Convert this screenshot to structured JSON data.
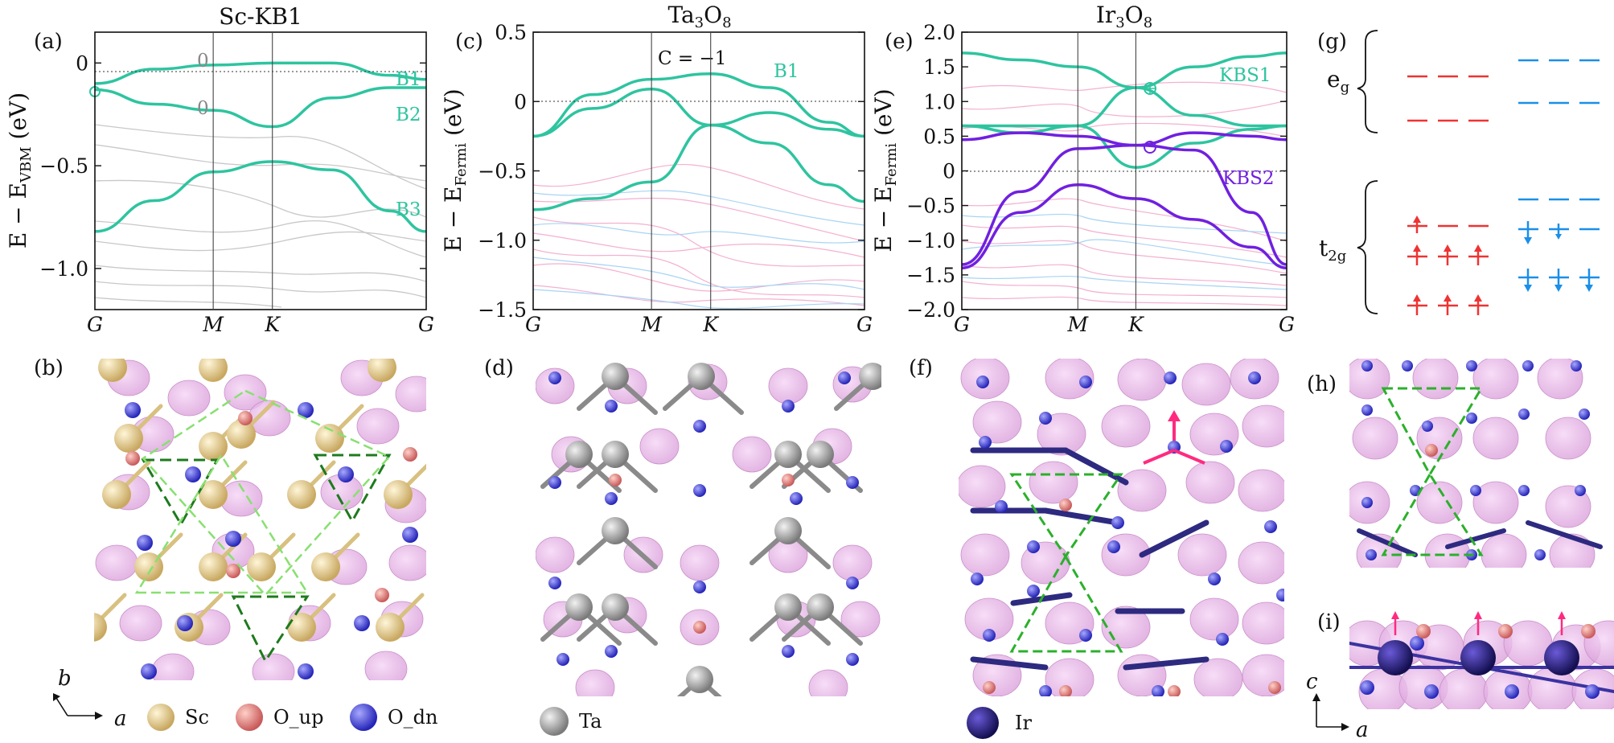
{
  "figure": {
    "panels": {
      "a": "(a)",
      "b": "(b)",
      "c": "(c)",
      "d": "(d)",
      "e": "(e)",
      "f": "(f)",
      "g": "(g)",
      "h": "(h)",
      "i": "(i)"
    },
    "titles": {
      "a": "Sc-KB1",
      "c": "Ta3O8",
      "e": "Ir3O8"
    },
    "ylabels": {
      "a": "E − E_VBM (eV)",
      "c": "E − E_Fermi (eV)",
      "e": "E − E_Fermi (eV)"
    },
    "kpath": [
      "G",
      "M",
      "K",
      "G"
    ],
    "band_labels": {
      "a": [
        "B1",
        "B2",
        "B3"
      ],
      "a_zero": "0",
      "c": [
        "B1"
      ],
      "c_chern": "C = −1",
      "e": [
        "KBS1",
        "KBS2"
      ]
    },
    "orbitals": {
      "eg": "eg",
      "t2g": "t2g"
    },
    "axes": {
      "a_axis": "a",
      "b_axis": "b",
      "c_axis": "c"
    },
    "legends": {
      "b": [
        "Sc",
        "O_up",
        "O_dn"
      ],
      "d": [
        "Ta"
      ],
      "f": [
        "Ir"
      ]
    },
    "colors": {
      "teal": "#2ec4a0",
      "purple": "#7020e0",
      "pink": "#f0a0c8",
      "lightblue": "#8fc8f0",
      "gray": "#bdbdbd",
      "red": "#ee3333",
      "blue": "#1a8fe8",
      "sc": "#d8c080",
      "o_up": "#e07070",
      "o_dn": "#3a3ad8",
      "ta": "#9a9a9a",
      "ir": "#1f1a6a",
      "lobe": "#e8b0e8",
      "green_dash": "#2bb02b",
      "dark_green": "#1e7a1e",
      "light_green": "#88e070"
    }
  },
  "chart_data": [
    {
      "type": "line",
      "title": "Sc-KB1",
      "ylabel": "E − E_VBM (eV)",
      "x_ticks": [
        "G",
        "M",
        "K",
        "G"
      ],
      "ylim": [
        -1.2,
        0.15
      ],
      "y_ticks": [
        0,
        -0.5,
        -1.0
      ],
      "series": [
        {
          "name": "B1",
          "x": [
            0,
            0.5,
            1.0,
            1.5,
            2.0,
            2.5,
            2.8
          ],
          "values": [
            -0.1,
            -0.03,
            -0.01,
            0.0,
            0.0,
            -0.06,
            -0.08
          ]
        },
        {
          "name": "B2",
          "x": [
            0,
            0.5,
            1.0,
            1.5,
            2.0,
            2.5,
            2.8
          ],
          "values": [
            -0.13,
            -0.2,
            -0.23,
            -0.31,
            -0.17,
            -0.12,
            -0.12
          ]
        },
        {
          "name": "B3",
          "x": [
            0,
            0.5,
            1.0,
            1.5,
            2.0,
            2.5,
            2.8
          ],
          "values": [
            -0.82,
            -0.67,
            -0.53,
            -0.48,
            -0.52,
            -0.72,
            -0.82
          ]
        }
      ]
    },
    {
      "type": "line",
      "title": "Ta3O8",
      "ylabel": "E − E_Fermi (eV)",
      "x_ticks": [
        "G",
        "M",
        "K",
        "G"
      ],
      "ylim": [
        -1.5,
        0.5
      ],
      "y_ticks": [
        0.5,
        0,
        -0.5,
        -1.0,
        -1.5
      ],
      "series": [
        {
          "name": "B1",
          "x": [
            0,
            0.5,
            1.0,
            1.5,
            2.0,
            2.5,
            2.8
          ],
          "values": [
            -0.25,
            0.05,
            0.16,
            0.2,
            0.1,
            -0.15,
            -0.25
          ]
        },
        {
          "x": [
            0,
            0.5,
            1.0,
            1.5,
            2.0,
            2.5,
            2.8
          ],
          "values": [
            -0.25,
            -0.05,
            0.09,
            -0.17,
            -0.08,
            -0.2,
            -0.25
          ]
        },
        {
          "x": [
            0,
            0.5,
            1.0,
            1.5,
            2.0,
            2.5,
            2.8
          ],
          "values": [
            -0.78,
            -0.7,
            -0.58,
            -0.17,
            -0.3,
            -0.6,
            -0.72
          ]
        }
      ]
    },
    {
      "type": "line",
      "title": "Ir3O8",
      "ylabel": "E − E_Fermi (eV)",
      "x_ticks": [
        "G",
        "M",
        "K",
        "G"
      ],
      "ylim": [
        -2.0,
        2.0
      ],
      "y_ticks": [
        2.0,
        1.5,
        1.0,
        0.5,
        0,
        -0.5,
        -1.0,
        -1.5,
        -2.0
      ],
      "series": [
        {
          "name": "KBS1",
          "x": [
            0,
            0.5,
            1.0,
            1.5,
            2.0,
            2.5,
            2.8
          ],
          "values": [
            1.7,
            1.6,
            1.5,
            1.2,
            1.5,
            1.65,
            1.7
          ]
        },
        {
          "x": [
            0,
            0.5,
            1.0,
            1.5,
            2.0,
            2.5,
            2.8
          ],
          "values": [
            0.65,
            0.65,
            0.65,
            1.2,
            0.8,
            0.65,
            0.65
          ]
        },
        {
          "x": [
            0,
            0.5,
            1.0,
            1.5,
            2.0,
            2.5,
            2.8
          ],
          "values": [
            0.65,
            0.55,
            0.65,
            0.05,
            0.4,
            0.6,
            0.65
          ]
        },
        {
          "name": "KBS2",
          "x": [
            0,
            0.5,
            1.0,
            1.5,
            2.0,
            2.5,
            2.8
          ],
          "values": [
            0.45,
            0.55,
            0.5,
            0.37,
            0.55,
            0.5,
            0.45
          ]
        },
        {
          "x": [
            0,
            0.5,
            1.0,
            1.5,
            2.0,
            2.5,
            2.8
          ],
          "values": [
            -1.35,
            -0.3,
            0.32,
            0.37,
            0.3,
            -0.6,
            -1.35
          ]
        },
        {
          "x": [
            0,
            0.5,
            1.0,
            1.5,
            2.0,
            2.5,
            2.8
          ],
          "values": [
            -1.4,
            -0.6,
            -0.2,
            -0.4,
            -0.7,
            -1.1,
            -1.4
          ]
        }
      ]
    }
  ]
}
